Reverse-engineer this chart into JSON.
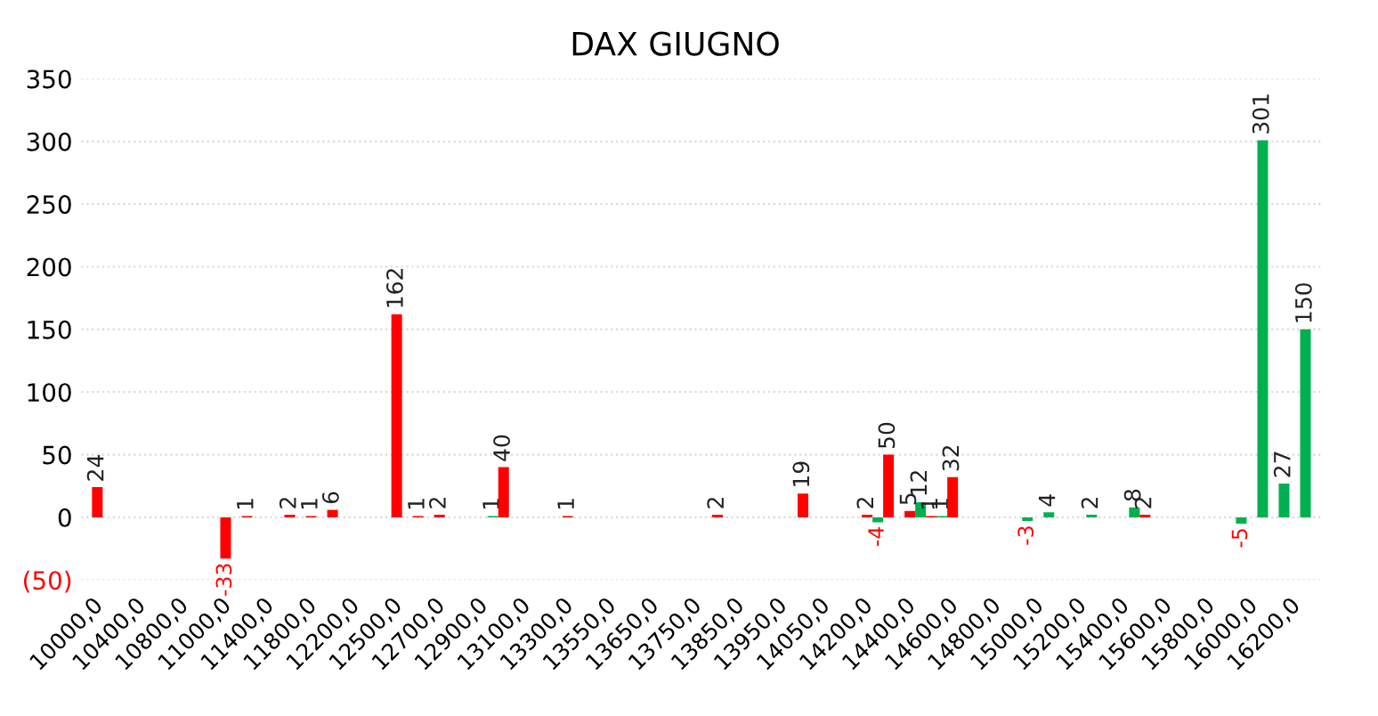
{
  "chart_data": {
    "type": "bar",
    "title": "DAX GIUGNO",
    "categories": [
      "10000,0",
      null,
      "10400,0",
      null,
      "10800,0",
      null,
      "11000,0",
      null,
      "11400,0",
      null,
      "11800,0",
      null,
      "12200,0",
      null,
      "12500,0",
      null,
      "12700,0",
      null,
      "12900,0",
      null,
      "13100,0",
      null,
      "13300,0",
      null,
      "13550,0",
      null,
      "13650,0",
      null,
      "13750,0",
      null,
      "13850,0",
      null,
      "13950,0",
      null,
      "14050,0",
      null,
      "14200,0",
      null,
      "14400,0",
      null,
      "14600,0",
      null,
      "14800,0",
      null,
      "15000,0",
      null,
      "15200,0",
      null,
      "15400,0",
      null,
      "15600,0",
      null,
      "15800,0",
      null,
      "16000,0",
      null,
      "16200,0",
      null
    ],
    "series": [
      {
        "color": "#00b050",
        "values": [
          null,
          null,
          null,
          null,
          null,
          null,
          null,
          null,
          null,
          null,
          null,
          null,
          null,
          null,
          null,
          null,
          null,
          null,
          null,
          1,
          null,
          null,
          null,
          null,
          null,
          null,
          null,
          null,
          null,
          null,
          null,
          null,
          null,
          null,
          null,
          null,
          null,
          -4,
          null,
          12,
          1,
          null,
          null,
          null,
          -3,
          4,
          null,
          2,
          null,
          8,
          null,
          null,
          null,
          null,
          -5,
          301,
          27,
          150
        ]
      },
      {
        "color": "#ff0000",
        "values": [
          24,
          null,
          null,
          null,
          null,
          null,
          -33,
          1,
          null,
          2,
          1,
          6,
          null,
          null,
          162,
          1,
          2,
          null,
          null,
          40,
          null,
          null,
          1,
          null,
          null,
          null,
          null,
          null,
          null,
          2,
          null,
          null,
          null,
          19,
          null,
          null,
          2,
          50,
          5,
          1,
          32,
          null,
          null,
          null,
          null,
          null,
          null,
          null,
          null,
          2,
          null,
          null,
          null,
          null,
          null,
          null,
          null,
          null
        ]
      }
    ],
    "ylim": [
      -50,
      350
    ],
    "yticks": [
      {
        "value": -50,
        "label": "(50)"
      },
      0,
      50,
      100,
      150,
      200,
      250,
      300,
      350
    ],
    "grid": "y",
    "data_labels": true
  }
}
